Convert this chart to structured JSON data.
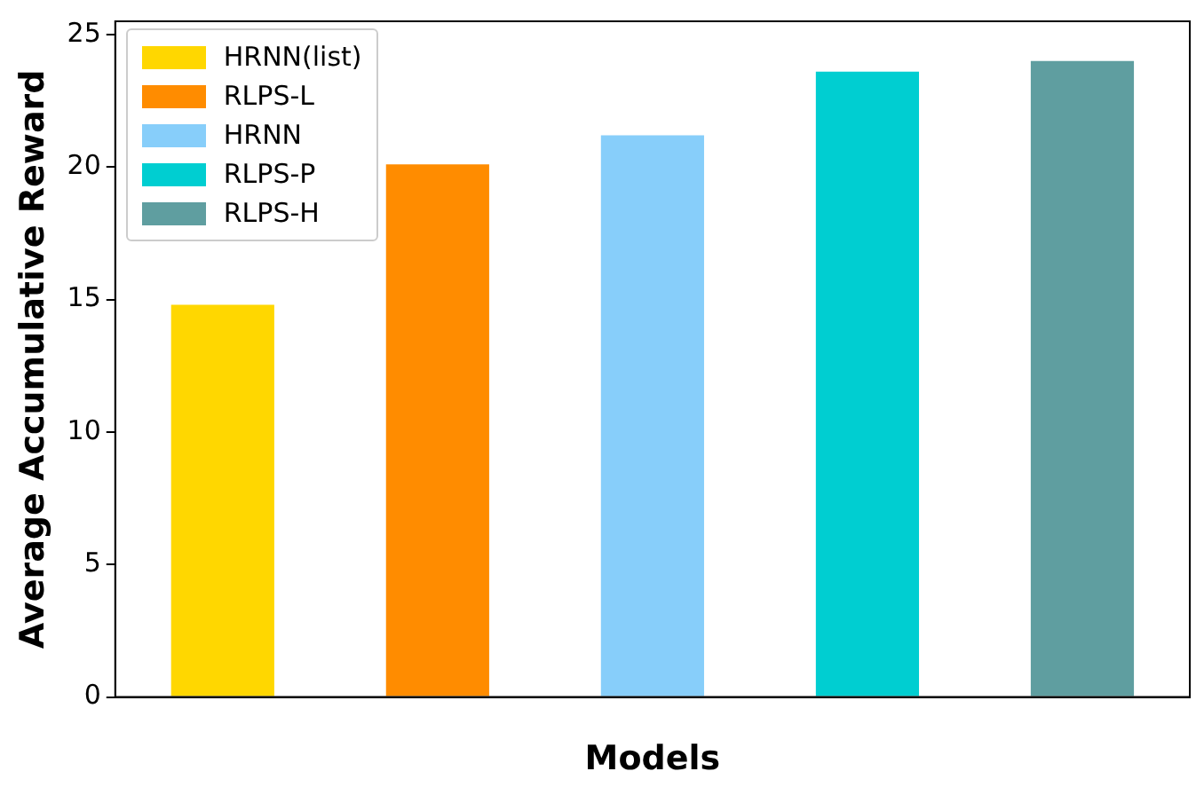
{
  "chart_data": {
    "type": "bar",
    "xlabel": "Models",
    "ylabel": "Average Accumulative Reward",
    "categories": [
      null,
      null,
      null,
      null,
      null
    ],
    "series": [
      {
        "name": "HRNN(list)",
        "color": "#ffd700",
        "values": [
          14.8,
          null,
          null,
          null,
          null
        ]
      },
      {
        "name": "RLPS-L",
        "color": "#ff8c00",
        "values": [
          null,
          20.1,
          null,
          null,
          null
        ]
      },
      {
        "name": "HRNN",
        "color": "#87cefa",
        "values": [
          null,
          null,
          21.2,
          null,
          null
        ]
      },
      {
        "name": "RLPS-P",
        "color": "#00ced1",
        "values": [
          null,
          null,
          null,
          23.6,
          null
        ]
      },
      {
        "name": "RLPS-H",
        "color": "#5f9ea0",
        "values": [
          null,
          null,
          null,
          null,
          24.0
        ]
      }
    ],
    "ylim": [
      0,
      25.5
    ],
    "yticks": [
      0,
      5,
      10,
      15,
      20,
      25
    ],
    "grid": false,
    "legend": "top left"
  }
}
